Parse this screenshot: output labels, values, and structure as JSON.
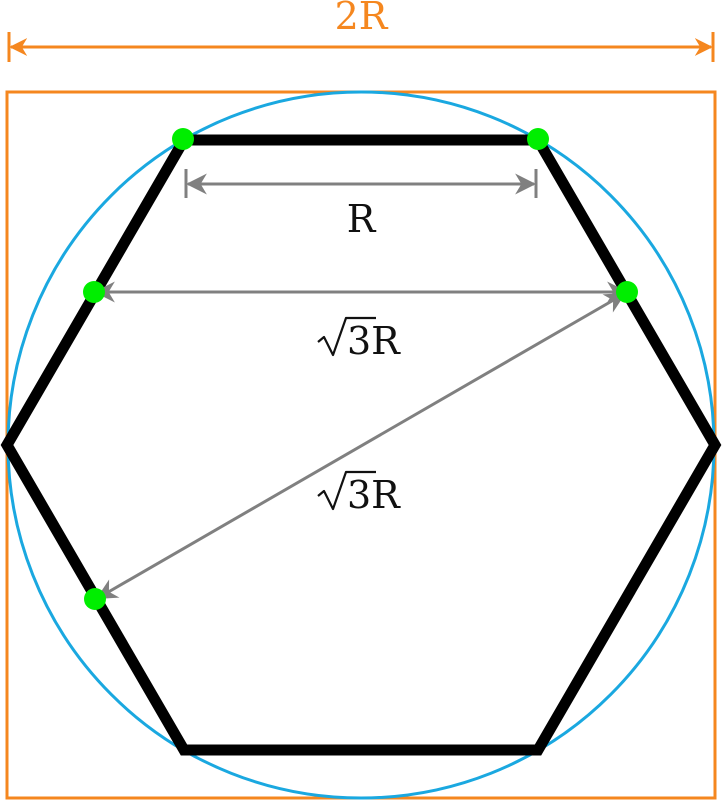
{
  "labels": {
    "width_label": "2R",
    "side_label": "R",
    "horizontal_diagonal_label": "3R",
    "slanted_diagonal_label": "3R"
  },
  "colors": {
    "square": "#f5871f",
    "circle": "#1aa8e0",
    "hexagon": "#000000",
    "measure_arrows": "#808080",
    "points": "#00ee00",
    "label_text": "#111111"
  },
  "points_count": 5
}
